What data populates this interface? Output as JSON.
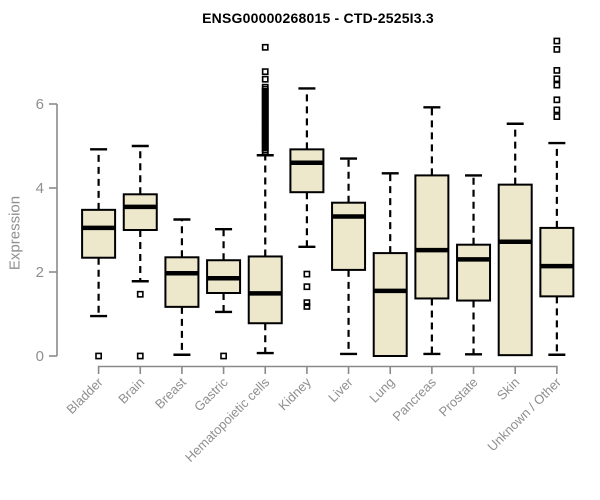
{
  "chart_data": {
    "type": "boxplot",
    "title": "ENSG00000268015 - CTD-2525I3.3",
    "ylabel": "Expression",
    "xlabel": "",
    "yticks": [
      0,
      2,
      4,
      6
    ],
    "ylim": [
      0,
      7.6
    ],
    "grid": false,
    "legend": "none",
    "colors": {
      "box_fill": "#EDE7CC",
      "box_stroke": "#000000",
      "median": "#000000",
      "whisker": "#000000",
      "axis": "#8a8a8a",
      "tick_label": "#8f8f8f",
      "title": "#000000",
      "background": "#ffffff"
    },
    "categories": [
      "Bladder",
      "Brain",
      "Breast",
      "Gastric",
      "Hematopoietic cells",
      "Kidney",
      "Liver",
      "Lung",
      "Pancreas",
      "Prostate",
      "Skin",
      "Unknown / Other"
    ],
    "boxes": [
      {
        "label": "Bladder",
        "whisker_low": 0.95,
        "q1": 2.34,
        "median": 3.05,
        "q3": 3.48,
        "whisker_high": 4.92,
        "outliers": [
          0.0
        ]
      },
      {
        "label": "Brain",
        "whisker_low": 1.78,
        "q1": 3.0,
        "median": 3.55,
        "q3": 3.85,
        "whisker_high": 5.0,
        "outliers": [
          1.47,
          0.0
        ]
      },
      {
        "label": "Breast",
        "whisker_low": 0.03,
        "q1": 1.17,
        "median": 1.97,
        "q3": 2.35,
        "whisker_high": 3.25,
        "outliers": []
      },
      {
        "label": "Gastric",
        "whisker_low": 1.05,
        "q1": 1.5,
        "median": 1.85,
        "q3": 2.28,
        "whisker_high": 3.02,
        "outliers": [
          0.0
        ]
      },
      {
        "label": "Hematopoietic cells",
        "whisker_low": 0.07,
        "q1": 0.78,
        "median": 1.49,
        "q3": 2.37,
        "whisker_high": 4.78,
        "outliers": [
          7.35,
          6.77,
          6.59,
          6.4,
          6.35,
          6.3,
          6.25,
          6.2,
          6.15,
          6.1,
          6.05,
          6.0,
          5.95,
          5.9,
          5.85,
          5.8,
          5.75,
          5.7,
          5.65,
          5.6,
          5.55,
          5.5,
          5.45,
          5.4,
          5.35,
          5.3,
          5.25,
          5.2,
          5.15,
          5.1,
          5.05,
          5.0,
          4.95,
          4.9,
          4.85
        ]
      },
      {
        "label": "Kidney",
        "whisker_low": 2.6,
        "q1": 3.9,
        "median": 4.6,
        "q3": 4.92,
        "whisker_high": 6.37,
        "outliers": [
          1.95,
          1.65,
          1.27,
          1.18
        ]
      },
      {
        "label": "Liver",
        "whisker_low": 0.05,
        "q1": 2.05,
        "median": 3.32,
        "q3": 3.65,
        "whisker_high": 4.7,
        "outliers": []
      },
      {
        "label": "Lung",
        "whisker_low": 0.0,
        "q1": 0.0,
        "median": 1.55,
        "q3": 2.45,
        "whisker_high": 4.35,
        "outliers": []
      },
      {
        "label": "Pancreas",
        "whisker_low": 0.05,
        "q1": 1.37,
        "median": 2.52,
        "q3": 4.3,
        "whisker_high": 5.92,
        "outliers": []
      },
      {
        "label": "Prostate",
        "whisker_low": 0.04,
        "q1": 1.32,
        "median": 2.3,
        "q3": 2.65,
        "whisker_high": 4.3,
        "outliers": []
      },
      {
        "label": "Skin",
        "whisker_low": 0.02,
        "q1": 0.02,
        "median": 2.72,
        "q3": 4.08,
        "whisker_high": 5.53,
        "outliers": []
      },
      {
        "label": "Unknown / Other",
        "whisker_low": 0.03,
        "q1": 1.42,
        "median": 2.14,
        "q3": 3.05,
        "whisker_high": 5.07,
        "outliers": [
          7.5,
          7.3,
          6.8,
          6.6,
          6.45,
          6.1,
          5.86,
          5.7
        ]
      }
    ]
  }
}
